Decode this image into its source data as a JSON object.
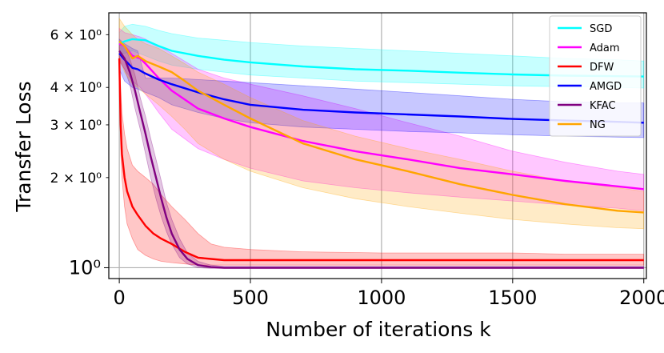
{
  "chart_data": {
    "type": "line",
    "title": "",
    "xlabel": "Number of iterations k",
    "ylabel": "Transfer Loss",
    "xlim": [
      -40,
      2010
    ],
    "ylim": [
      0.92,
      7.1
    ],
    "yscale": "log",
    "grid": true,
    "legend_position": "top-right",
    "x_ticks": [
      {
        "value": 0,
        "label": "0"
      },
      {
        "value": 500,
        "label": "500"
      },
      {
        "value": 1000,
        "label": "1000"
      },
      {
        "value": 1500,
        "label": "1500"
      },
      {
        "value": 2000,
        "label": "2000"
      }
    ],
    "y_ticks_major": [
      {
        "value": 1,
        "label": "10⁰"
      }
    ],
    "y_ticks_minor": [
      {
        "value": 2,
        "label": "2 × 10⁰"
      },
      {
        "value": 3,
        "label": "3 × 10⁰"
      },
      {
        "value": 4,
        "label": "4 × 10⁰"
      },
      {
        "value": 6,
        "label": "6 × 10⁰"
      }
    ],
    "series": [
      {
        "name": "SGD",
        "color": "#00ffff",
        "x": [
          0,
          20,
          50,
          100,
          150,
          200,
          300,
          400,
          500,
          700,
          900,
          1100,
          1300,
          1500,
          1700,
          1900,
          2000
        ],
        "y": [
          5.6,
          5.7,
          5.8,
          5.75,
          5.5,
          5.3,
          5.1,
          4.95,
          4.85,
          4.7,
          4.6,
          4.55,
          4.48,
          4.42,
          4.38,
          4.36,
          4.35
        ],
        "lower": [
          5.2,
          5.2,
          5.3,
          5.1,
          4.9,
          4.75,
          4.6,
          4.5,
          4.4,
          4.3,
          4.2,
          4.15,
          4.1,
          4.05,
          4.02,
          4.0,
          3.98
        ],
        "upper": [
          6.1,
          6.4,
          6.5,
          6.4,
          6.2,
          6.05,
          5.85,
          5.75,
          5.65,
          5.5,
          5.4,
          5.3,
          5.2,
          5.1,
          5.0,
          4.95,
          4.9
        ]
      },
      {
        "name": "Adam",
        "color": "#ff00ff",
        "x": [
          0,
          20,
          50,
          80,
          100,
          150,
          200,
          300,
          400,
          500,
          700,
          900,
          1100,
          1300,
          1500,
          1700,
          1900,
          2000
        ],
        "y": [
          5.6,
          5.5,
          5.1,
          5.0,
          4.8,
          4.3,
          3.9,
          3.4,
          3.15,
          2.95,
          2.65,
          2.45,
          2.3,
          2.15,
          2.05,
          1.95,
          1.87,
          1.83
        ],
        "lower": [
          5.0,
          4.6,
          4.2,
          4.0,
          3.8,
          3.3,
          2.9,
          2.5,
          2.3,
          2.15,
          1.95,
          1.85,
          1.78,
          1.72,
          1.67,
          1.62,
          1.58,
          1.55
        ],
        "upper": [
          6.3,
          6.1,
          6.0,
          5.9,
          5.8,
          5.5,
          5.2,
          4.6,
          4.3,
          4.1,
          3.75,
          3.4,
          3.05,
          2.75,
          2.45,
          2.25,
          2.1,
          2.05
        ]
      },
      {
        "name": "DFW",
        "color": "#ff0000",
        "x": [
          0,
          5,
          10,
          20,
          30,
          50,
          70,
          100,
          130,
          160,
          200,
          250,
          300,
          350,
          400,
          500,
          700,
          1000,
          1300,
          1500,
          1700,
          2000
        ],
        "y": [
          5.0,
          3.0,
          2.4,
          2.0,
          1.8,
          1.6,
          1.5,
          1.38,
          1.3,
          1.25,
          1.2,
          1.13,
          1.08,
          1.07,
          1.06,
          1.06,
          1.06,
          1.06,
          1.06,
          1.06,
          1.06,
          1.06
        ],
        "lower": [
          4.5,
          2.5,
          2.0,
          1.6,
          1.4,
          1.25,
          1.15,
          1.1,
          1.07,
          1.05,
          1.04,
          1.03,
          1.02,
          1.02,
          1.02,
          1.02,
          1.02,
          1.02,
          1.02,
          1.02,
          1.02,
          1.02
        ],
        "upper": [
          5.5,
          4.0,
          3.3,
          2.8,
          2.5,
          2.2,
          2.1,
          2.0,
          1.9,
          1.75,
          1.6,
          1.45,
          1.3,
          1.2,
          1.17,
          1.15,
          1.13,
          1.12,
          1.12,
          1.12,
          1.11,
          1.11
        ]
      },
      {
        "name": "AMGD",
        "color": "#0000ff",
        "x": [
          0,
          20,
          50,
          70,
          100,
          150,
          200,
          300,
          400,
          500,
          700,
          900,
          1100,
          1300,
          1500,
          1700,
          1900,
          2000
        ],
        "y": [
          5.2,
          4.95,
          4.65,
          4.6,
          4.45,
          4.25,
          4.1,
          3.85,
          3.65,
          3.5,
          3.37,
          3.3,
          3.25,
          3.2,
          3.14,
          3.1,
          3.07,
          3.05
        ],
        "lower": [
          4.6,
          4.2,
          4.0,
          3.95,
          3.85,
          3.7,
          3.5,
          3.3,
          3.15,
          3.05,
          2.95,
          2.9,
          2.85,
          2.82,
          2.78,
          2.75,
          2.73,
          2.72
        ],
        "upper": [
          5.8,
          5.6,
          5.4,
          5.3,
          4.3,
          4.3,
          4.3,
          4.25,
          4.2,
          4.15,
          4.05,
          3.95,
          3.85,
          3.75,
          3.65,
          3.58,
          3.55,
          3.55
        ]
      },
      {
        "name": "KFAC",
        "color": "#800080",
        "x": [
          0,
          20,
          40,
          60,
          80,
          100,
          120,
          140,
          160,
          180,
          200,
          230,
          260,
          300,
          350,
          400,
          500,
          700,
          1000,
          1500,
          2000
        ],
        "y": [
          5.3,
          5.0,
          4.5,
          3.9,
          3.3,
          2.8,
          2.35,
          2.0,
          1.7,
          1.47,
          1.3,
          1.15,
          1.07,
          1.02,
          1.005,
          1.0,
          1.0,
          1.0,
          1.0,
          1.0,
          1.0
        ],
        "lower": [
          4.9,
          4.6,
          4.1,
          3.4,
          2.9,
          2.4,
          2.0,
          1.7,
          1.48,
          1.32,
          1.2,
          1.08,
          1.03,
          1.0,
          0.995,
          0.995,
          0.995,
          0.995,
          0.995,
          0.995,
          0.995
        ],
        "upper": [
          5.7,
          5.5,
          5.0,
          4.4,
          3.7,
          3.2,
          2.7,
          2.3,
          1.95,
          1.65,
          1.45,
          1.25,
          1.12,
          1.05,
          1.02,
          1.01,
          1.01,
          1.01,
          1.01,
          1.01,
          1.01
        ]
      },
      {
        "name": "NG",
        "color": "#ffa500",
        "x": [
          0,
          20,
          50,
          70,
          100,
          150,
          200,
          250,
          300,
          400,
          500,
          700,
          900,
          1100,
          1300,
          1500,
          1700,
          1900,
          2000
        ],
        "y": [
          5.7,
          5.5,
          5.0,
          5.1,
          4.9,
          4.7,
          4.5,
          4.2,
          3.9,
          3.5,
          3.15,
          2.6,
          2.3,
          2.1,
          1.9,
          1.75,
          1.63,
          1.55,
          1.53
        ],
        "lower": [
          5.0,
          4.5,
          4.1,
          4.0,
          3.8,
          3.5,
          3.2,
          2.9,
          2.6,
          2.3,
          2.1,
          1.85,
          1.7,
          1.6,
          1.52,
          1.45,
          1.4,
          1.36,
          1.35
        ],
        "upper": [
          6.8,
          6.4,
          6.0,
          5.8,
          5.6,
          5.4,
          5.1,
          4.8,
          4.5,
          4.1,
          3.7,
          3.1,
          2.75,
          2.5,
          2.3,
          2.1,
          1.95,
          1.85,
          1.8
        ]
      }
    ]
  }
}
